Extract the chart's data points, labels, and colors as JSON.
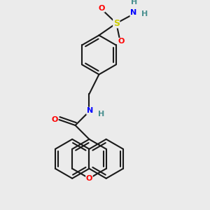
{
  "bg_color": "#ebebeb",
  "bond_color": "#1a1a1a",
  "bond_width": 1.5,
  "atom_colors": {
    "O": "#ff0000",
    "N": "#0000ff",
    "S": "#cccc00",
    "H": "#4a9090",
    "C": "#1a1a1a"
  },
  "figsize": [
    3.0,
    3.0
  ],
  "dpi": 100
}
